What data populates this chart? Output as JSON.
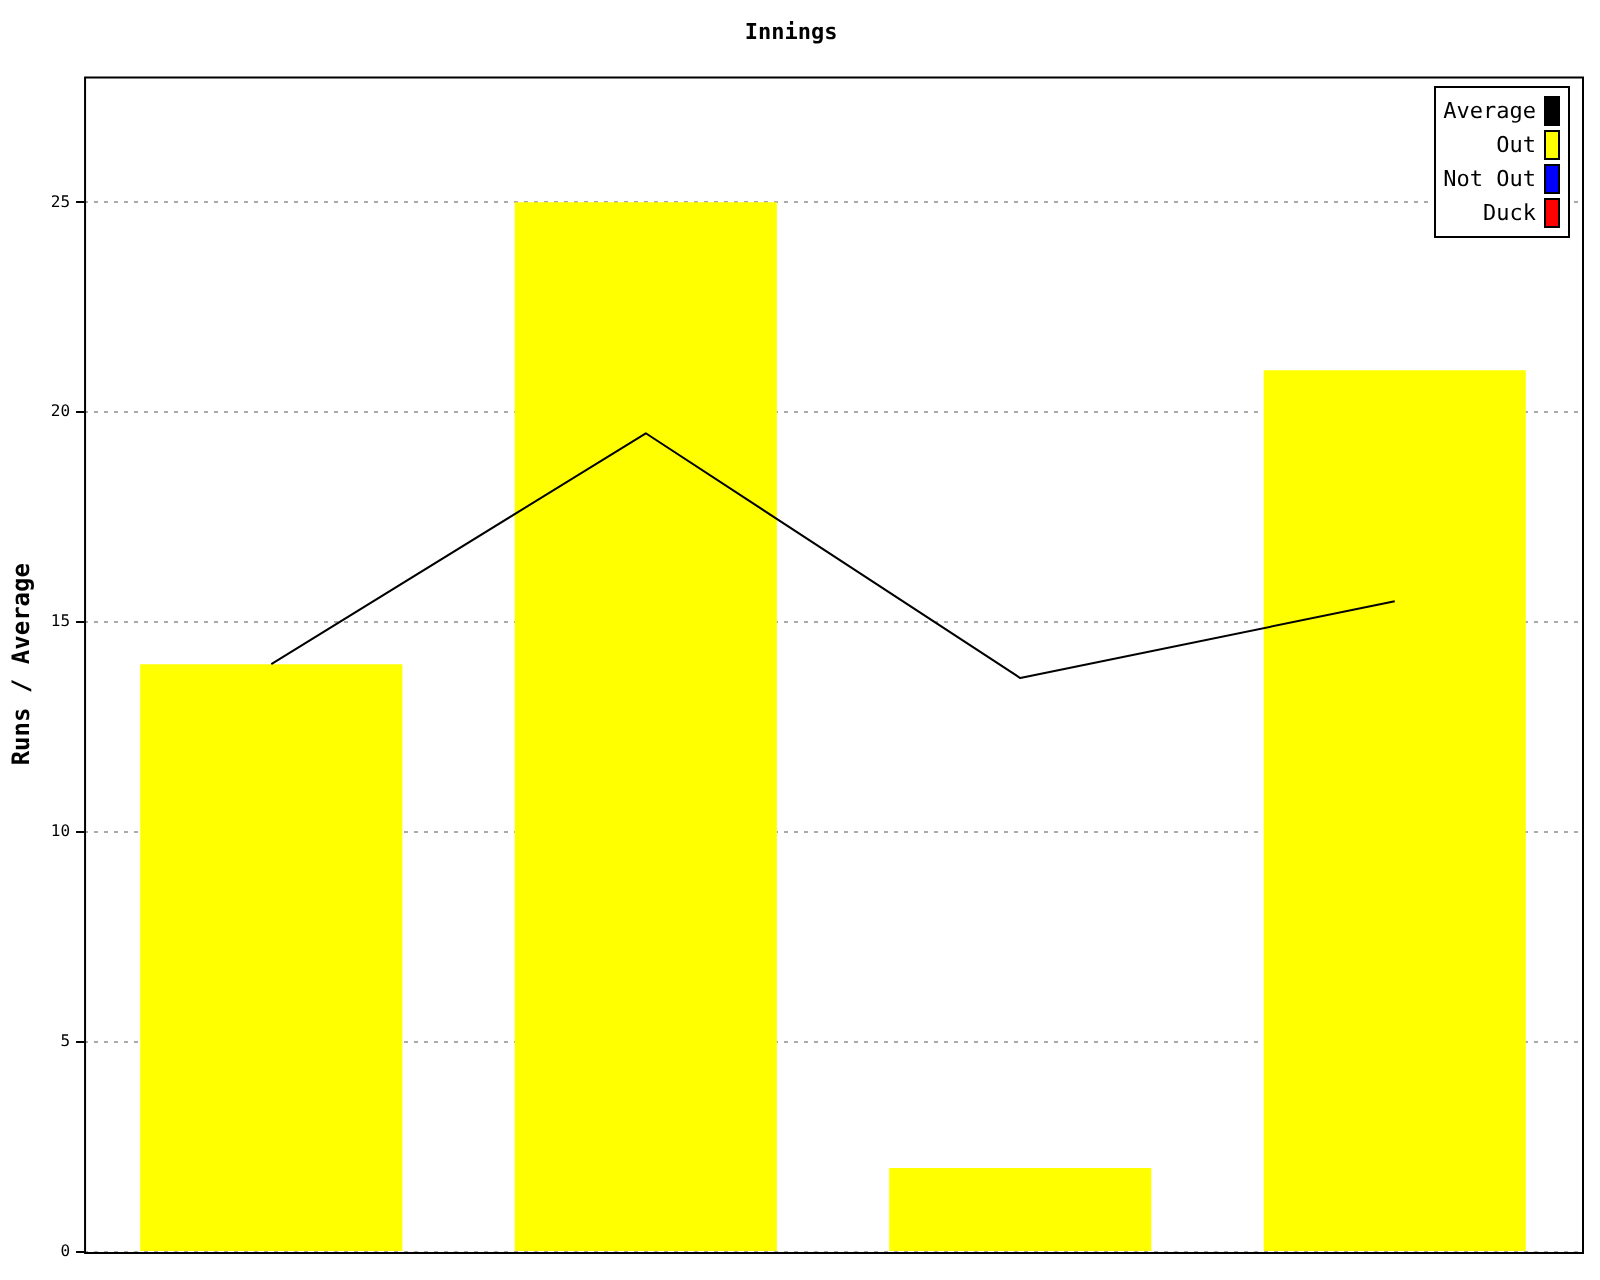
{
  "chart_data": {
    "type": "bar",
    "title": "Innings",
    "ylabel": "Runs / Average",
    "categories": [
      null,
      null,
      null,
      null
    ],
    "series": [
      {
        "name": "Average",
        "type": "line",
        "color": "#000000",
        "values": [
          14,
          19.5,
          13.67,
          15.5
        ]
      },
      {
        "name": "Out",
        "color": "#ffff00",
        "values": [
          14,
          25,
          2,
          21
        ]
      },
      {
        "name": "Not Out",
        "color": "#0000ff",
        "values": [
          null,
          null,
          null,
          null
        ]
      },
      {
        "name": "Duck",
        "color": "#ff0000",
        "values": [
          null,
          null,
          null,
          null
        ]
      }
    ],
    "ylim": [
      0,
      28
    ],
    "yticks": [
      0,
      5,
      10,
      15,
      20,
      25
    ],
    "grid": "y",
    "legend": "top right",
    "tick_labels": "y",
    "marker": "none",
    "line_style": "solid",
    "stacked": true
  }
}
